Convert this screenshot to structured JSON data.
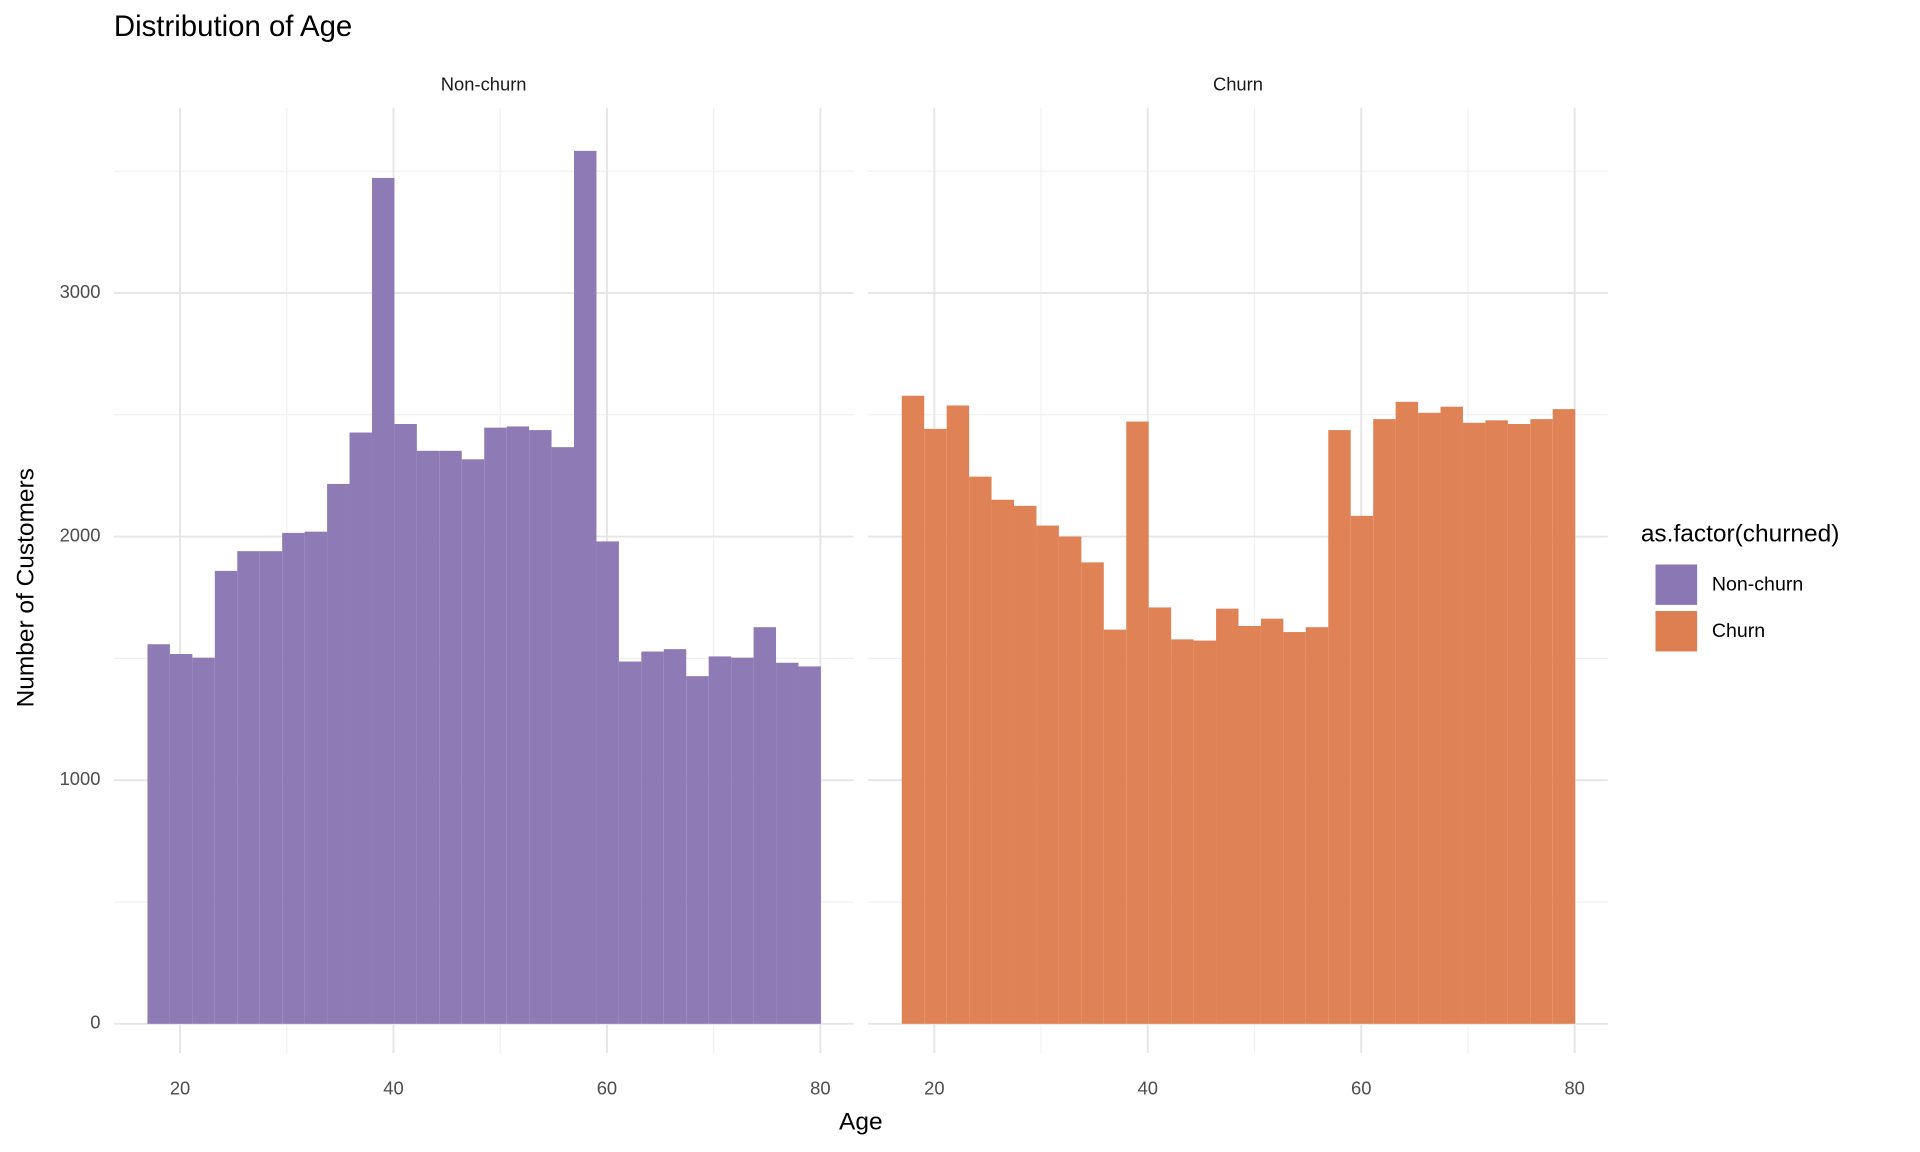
{
  "chart_data": {
    "type": "histogram",
    "title": "Distribution of Age",
    "xlabel": "Age",
    "ylabel": "Number of Customers",
    "legend_title": "as.factor(churned)",
    "legend": "right",
    "grid": true,
    "bins": [
      16.948,
      19.052,
      21.155,
      23.259,
      25.362,
      27.466,
      29.569,
      31.672,
      33.776,
      35.879,
      37.983,
      40.086,
      42.19,
      44.293,
      46.397,
      48.5,
      50.603,
      52.707,
      54.81,
      56.914,
      59.017,
      61.121,
      63.224,
      65.328,
      67.431,
      69.534,
      71.638,
      73.741,
      75.845,
      77.948,
      80.052
    ],
    "series": [
      {
        "name": "Non-churn",
        "color": "#8a77b3",
        "values": [
          1558,
          1518,
          1503,
          1859,
          1940,
          1940,
          2015,
          2020,
          2216,
          2427,
          3472,
          2462,
          2352,
          2352,
          2317,
          2447,
          2452,
          2437,
          2367,
          3583,
          1980,
          1487,
          1528,
          1538,
          1427,
          1508,
          1503,
          1628,
          1482,
          1467
        ]
      },
      {
        "name": "Churn",
        "color": "#de7f51",
        "values": [
          2578,
          2442,
          2538,
          2246,
          2151,
          2126,
          2045,
          2000,
          1894,
          1618,
          2472,
          1709,
          1578,
          1573,
          1704,
          1633,
          1663,
          1608,
          1628,
          2437,
          2085,
          2482,
          2553,
          2508,
          2533,
          2467,
          2477,
          2462,
          2482,
          2523
        ]
      }
    ],
    "xlim": [
      13.8,
      83.1
    ],
    "xticks": [
      20,
      40,
      60,
      80
    ],
    "xminor": [
      30,
      50,
      70
    ],
    "ylim": [
      -120,
      3760
    ],
    "yticks": [
      0,
      1000,
      2000,
      3000
    ],
    "yminor": [
      500,
      1500,
      2500,
      3500
    ]
  }
}
